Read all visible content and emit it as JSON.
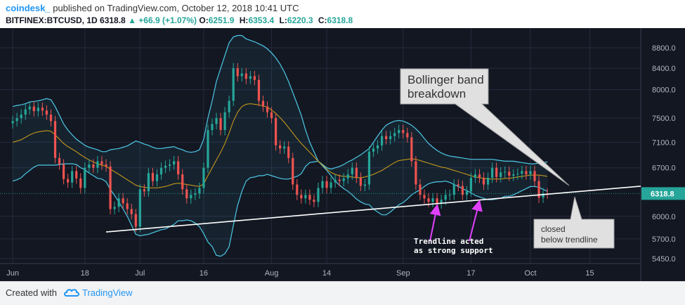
{
  "header": {
    "username": "coindesk_",
    "published_text": "published on TradingView.com, October 12, 2018 10:41 UTC",
    "symbol": "BITFINEX:BTCUSD, 1D",
    "last": "6318.8",
    "change": "+66.9 (+1.07%)",
    "open_label": "O:",
    "open": "6251.9",
    "high_label": "H:",
    "high": "6353.4",
    "low_label": "L:",
    "low": "6220.3",
    "close_label": "C:",
    "close": "6318.8"
  },
  "footer": {
    "created_with": "Created with",
    "brand": "TradingView"
  },
  "colors": {
    "background": "#131722",
    "grid": "#262b3e",
    "up_candle": "#26a69a",
    "down_candle": "#ef5350",
    "bollinger_band": "#4dc9e6",
    "bollinger_basis": "#d4a017",
    "trendline": "#ffffff",
    "arrow": "#e040fb",
    "price_label_bg": "#26a69a"
  },
  "chart_data": {
    "type": "candlestick",
    "y_scale": "log",
    "ylim": [
      5450,
      8800
    ],
    "y_ticks": [
      "8800.0",
      "8400.0",
      "8000.0",
      "7500.0",
      "7100.0",
      "6700.0",
      "6000.0",
      "5700.0",
      "5450.0"
    ],
    "y_tick_values": [
      8800,
      8400,
      8000,
      7500,
      7100,
      6700,
      6000,
      5700,
      5450
    ],
    "x_ticks": [
      {
        "label": "Jun",
        "date": "2018-06-01"
      },
      {
        "label": "18",
        "date": "2018-06-18"
      },
      {
        "label": "Jul",
        "date": "2018-07-01"
      },
      {
        "label": "16",
        "date": "2018-07-16"
      },
      {
        "label": "Aug",
        "date": "2018-08-01"
      },
      {
        "label": "14",
        "date": "2018-08-14"
      },
      {
        "label": "Sep",
        "date": "2018-09-01"
      },
      {
        "label": "17",
        "date": "2018-09-17"
      },
      {
        "label": "Oct",
        "date": "2018-10-01"
      },
      {
        "label": "15",
        "date": "2018-10-15"
      }
    ],
    "xlim": [
      "2018-05-29",
      "2018-10-27"
    ],
    "last_price_label": "6318.8",
    "last_price": 6318.8,
    "close_series": [
      7450,
      7500,
      7560,
      7650,
      7700,
      7620,
      7680,
      7630,
      7560,
      7450,
      6850,
      6750,
      6530,
      6480,
      6650,
      6540,
      6400,
      6700,
      6750,
      6700,
      6800,
      6750,
      6720,
      6100,
      6130,
      6250,
      6180,
      6100,
      6030,
      5860,
      6380,
      6350,
      6620,
      6500,
      6600,
      6700,
      6730,
      6750,
      6800,
      6600,
      6380,
      6250,
      6300,
      6320,
      6400,
      6700,
      7300,
      7400,
      7500,
      7300,
      7600,
      7800,
      8400,
      8250,
      8300,
      8200,
      8250,
      8180,
      7800,
      7700,
      7600,
      7500,
      7050,
      7000,
      7030,
      6850,
      6450,
      6300,
      6250,
      6300,
      6230,
      6200,
      6400,
      6500,
      6400,
      6480,
      6520,
      6500,
      6540,
      6600,
      6700,
      6550,
      6430,
      6450,
      6950,
      7000,
      7050,
      7200,
      7150,
      7200,
      7250,
      7300,
      7250,
      7180,
      6800,
      6450,
      6300,
      6250,
      6200,
      6250,
      6180,
      6230,
      6300,
      6300,
      6450,
      6430,
      6300,
      6350,
      6550,
      6600,
      6550,
      6450,
      6550,
      6700,
      6560,
      6630,
      6640,
      6580,
      6600,
      6610,
      6650,
      6600,
      6650,
      6500,
      6260,
      6320,
      6318.8
    ],
    "bollinger_upper": [
      7700,
      7720,
      7730,
      7750,
      7780,
      7790,
      7800,
      7820,
      7840,
      7820,
      7700,
      7550,
      7400,
      7300,
      7220,
      7150,
      7100,
      7050,
      7020,
      7000,
      6980,
      6950,
      6950,
      6980,
      6990,
      7000,
      7020,
      7040,
      7080,
      7120,
      7100,
      7070,
      7050,
      7020,
      7000,
      7000,
      7010,
      7020,
      7030,
      7000,
      6980,
      6950,
      6940,
      6950,
      6980,
      7150,
      7500,
      7800,
      8150,
      8400,
      8650,
      8900,
      9020,
      9050,
      9050,
      8980,
      8950,
      8920,
      8880,
      8840,
      8780,
      8700,
      8600,
      8480,
      8330,
      8150,
      7950,
      7750,
      7550,
      7300,
      7100,
      6950,
      6800,
      6750,
      6700,
      6680,
      6700,
      6720,
      6750,
      6790,
      6820,
      6860,
      6900,
      6950,
      7000,
      7100,
      7200,
      7300,
      7380,
      7420,
      7450,
      7460,
      7450,
      7420,
      7380,
      7320,
      7250,
      7160,
      7080,
      7020,
      6970,
      6930,
      6900,
      6880,
      6870,
      6860,
      6850,
      6840,
      6830,
      6830,
      6830,
      6830,
      6830,
      6830,
      6820,
      6810,
      6800,
      6800,
      6800,
      6790,
      6780,
      6770,
      6760,
      6760,
      6770,
      6780,
      6790
    ],
    "bollinger_basis": [
      7100,
      7120,
      7140,
      7180,
      7220,
      7250,
      7270,
      7280,
      7290,
      7280,
      7220,
      7150,
      7080,
      7030,
      6990,
      6950,
      6900,
      6860,
      6820,
      6790,
      6760,
      6740,
      6720,
      6680,
      6640,
      6600,
      6560,
      6520,
      6480,
      6440,
      6420,
      6410,
      6400,
      6400,
      6400,
      6410,
      6420,
      6440,
      6460,
      6470,
      6460,
      6450,
      6440,
      6430,
      6420,
      6460,
      6580,
      6700,
      6820,
      6940,
      7080,
      7250,
      7450,
      7600,
      7700,
      7740,
      7750,
      7740,
      7730,
      7710,
      7690,
      7640,
      7580,
      7510,
      7430,
      7340,
      7250,
      7160,
      7080,
      7010,
      6940,
      6870,
      6800,
      6740,
      6680,
      6630,
      6600,
      6580,
      6570,
      6570,
      6560,
      6550,
      6550,
      6560,
      6580,
      6600,
      6630,
      6660,
      6700,
      6740,
      6780,
      6810,
      6820,
      6830,
      6840,
      6830,
      6810,
      6790,
      6770,
      6750,
      6730,
      6710,
      6700,
      6680,
      6660,
      6640,
      6620,
      6600,
      6580,
      6560,
      6550,
      6540,
      6530,
      6530,
      6530,
      6530,
      6540,
      6540,
      6550,
      6560,
      6570,
      6580,
      6590,
      6590,
      6590,
      6580,
      6570
    ],
    "bollinger_lower": [
      6500,
      6520,
      6550,
      6610,
      6660,
      6710,
      6740,
      6740,
      6740,
      6740,
      6740,
      6750,
      6760,
      6760,
      6760,
      6750,
      6700,
      6670,
      6620,
      6580,
      6540,
      6530,
      6490,
      6380,
      6290,
      6200,
      6100,
      6000,
      5880,
      5760,
      5740,
      5750,
      5760,
      5780,
      5800,
      5820,
      5830,
      5860,
      5890,
      5940,
      5940,
      5950,
      5940,
      5910,
      5860,
      5770,
      5660,
      5600,
      5490,
      5480,
      5510,
      5600,
      5880,
      6150,
      6350,
      6500,
      6550,
      6560,
      6580,
      6580,
      6600,
      6580,
      6560,
      6540,
      6530,
      6530,
      6550,
      6570,
      6610,
      6720,
      6780,
      6790,
      6800,
      6730,
      6660,
      6580,
      6500,
      6440,
      6390,
      6350,
      6300,
      6240,
      6200,
      6170,
      6160,
      6100,
      6060,
      6020,
      6020,
      6060,
      6110,
      6160,
      6190,
      6240,
      6300,
      6340,
      6370,
      6420,
      6460,
      6480,
      6490,
      6490,
      6500,
      6480,
      6450,
      6420,
      6390,
      6360,
      6330,
      6290,
      6270,
      6250,
      6230,
      6230,
      6240,
      6250,
      6280,
      6280,
      6300,
      6330,
      6360,
      6390,
      6420,
      6420,
      6410,
      6380,
      6350
    ],
    "trendline": [
      {
        "date": "2018-06-23",
        "price": 5790
      },
      {
        "date": "2018-10-27",
        "price": 6425
      }
    ],
    "annotations": [
      {
        "id": "bollinger",
        "text_lines": [
          "Bollinger band",
          "breakdown"
        ]
      },
      {
        "id": "closed",
        "text_lines": [
          "closed",
          "below trendline"
        ]
      },
      {
        "id": "support",
        "text_lines": [
          "Trendline acted",
          "as strong support"
        ]
      }
    ]
  }
}
